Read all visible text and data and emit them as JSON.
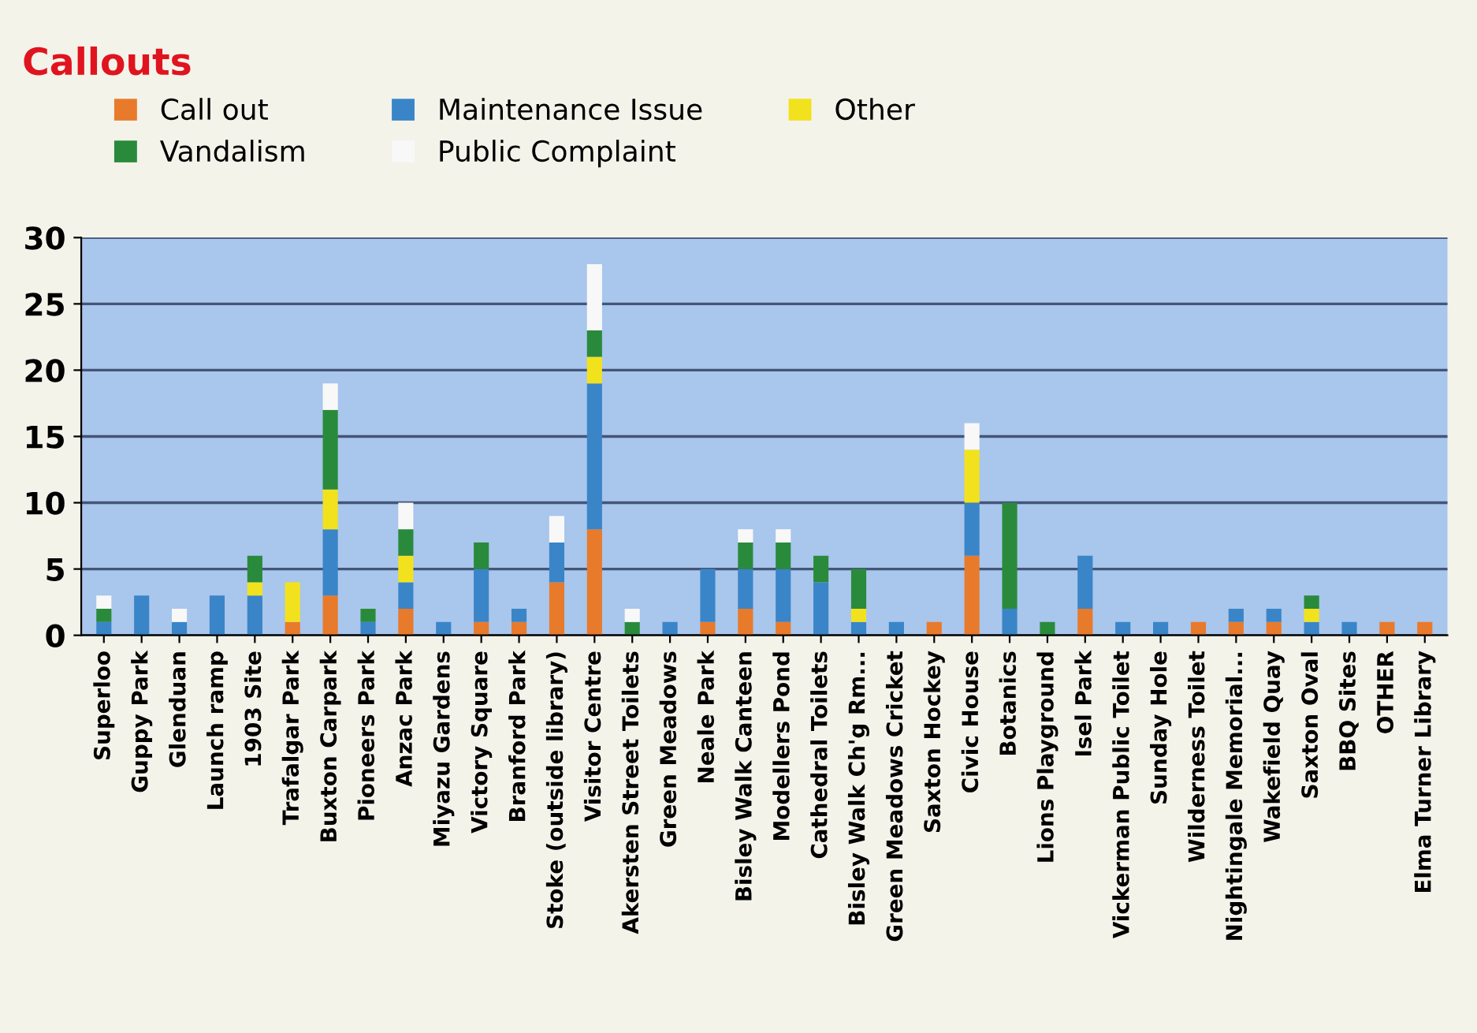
{
  "chart_data": {
    "type": "bar",
    "title": "Callouts",
    "stacked": true,
    "grid": "y",
    "legend": "top left",
    "categories": [
      "Superloo",
      "Guppy Park",
      "Glenduan",
      "Launch ramp",
      "1903 Site",
      "Trafalgar Park",
      "Buxton Carpark",
      "Pioneers Park",
      "Anzac Park",
      "Miyazu Gardens",
      "Victory Square",
      "Branford Park",
      "Stoke (outside library)",
      "Visitor Centre",
      "Akersten Street Toilets",
      "Green Meadows",
      "Neale Park",
      "Bisley Walk Canteen",
      "Modellers Pond",
      "Cathedral Toilets",
      "Bisley Walk Ch'g Rm...",
      "Green Meadows Cricket",
      "Saxton Hockey",
      "Civic House",
      "Botanics",
      "Lions Playground",
      "Isel Park",
      "Vickerman Public Toilet",
      "Sunday Hole",
      "Wilderness Toilet",
      "Nightingale Memorial...",
      "Wakefield Quay",
      "Saxton Oval",
      "BBQ Sites",
      "OTHER",
      "Elma Turner Library"
    ],
    "series": [
      {
        "name": "Call out",
        "color": "#e87a2c",
        "values": [
          0,
          0,
          0,
          0,
          0,
          1,
          3,
          0,
          2,
          0,
          1,
          1,
          4,
          8,
          0,
          0,
          1,
          2,
          1,
          0,
          0,
          0,
          1,
          6,
          0,
          0,
          2,
          0,
          0,
          1,
          1,
          1,
          0,
          0,
          1,
          1
        ]
      },
      {
        "name": "Maintenance Issue",
        "color": "#3a85c8",
        "values": [
          1,
          3,
          1,
          3,
          3,
          0,
          5,
          1,
          2,
          1,
          4,
          1,
          3,
          11,
          0,
          1,
          4,
          3,
          4,
          4,
          1,
          1,
          0,
          4,
          2,
          0,
          4,
          1,
          1,
          0,
          1,
          1,
          1,
          1,
          0,
          0
        ]
      },
      {
        "name": "Other",
        "color": "#f2e21e",
        "values": [
          0,
          0,
          0,
          0,
          1,
          3,
          3,
          0,
          2,
          0,
          0,
          0,
          0,
          2,
          0,
          0,
          0,
          0,
          0,
          0,
          1,
          0,
          0,
          4,
          0,
          0,
          0,
          0,
          0,
          0,
          0,
          0,
          1,
          0,
          0,
          0
        ]
      },
      {
        "name": "Vandalism",
        "color": "#2a8a3c",
        "values": [
          1,
          0,
          0,
          0,
          2,
          0,
          6,
          1,
          2,
          0,
          2,
          0,
          0,
          2,
          1,
          0,
          0,
          2,
          2,
          2,
          3,
          0,
          0,
          0,
          8,
          1,
          0,
          0,
          0,
          0,
          0,
          0,
          1,
          0,
          0,
          0
        ]
      },
      {
        "name": "Public Complaint",
        "color": "#f8f8f8",
        "values": [
          1,
          0,
          1,
          0,
          0,
          0,
          2,
          0,
          2,
          0,
          0,
          0,
          2,
          5,
          1,
          0,
          0,
          1,
          1,
          0,
          0,
          0,
          0,
          2,
          0,
          0,
          0,
          0,
          0,
          0,
          0,
          0,
          0,
          0,
          0,
          0
        ]
      }
    ],
    "ylim": [
      0,
      30
    ],
    "yticks": [
      0,
      5,
      10,
      15,
      20,
      25,
      30
    ]
  }
}
